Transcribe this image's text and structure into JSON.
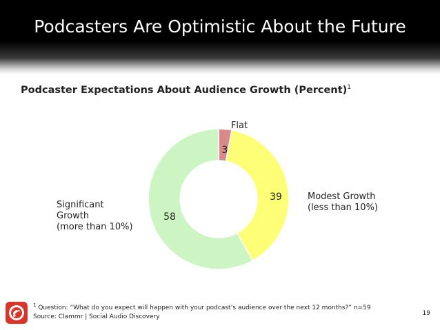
{
  "header": {
    "title": "Podcasters Are Optimistic About the Future"
  },
  "chart_data": {
    "type": "pie",
    "subtitle": "Podcaster Expectations About Audience Growth  (Percent)",
    "subtitle_footnote_ref": "1",
    "donut": true,
    "slices": [
      {
        "name": "Flat",
        "value": 3,
        "color": "#d88a8a",
        "label_lines": [
          "Flat"
        ]
      },
      {
        "name": "Modest Growth",
        "value": 39,
        "color": "#ffff77",
        "label_lines": [
          "Modest Growth",
          "(less than 10%)"
        ]
      },
      {
        "name": "Significant Growth",
        "value": 58,
        "color": "#ccf5c3",
        "label_lines": [
          "Significant",
          "Growth",
          "(more than 10%)"
        ]
      }
    ]
  },
  "footer": {
    "footnote_num": "1",
    "footnote_text": "Question: “What do you expect will happen with your podcast’s audience over the next 12 months?” n=59",
    "source": "Source: Clammr | Social Audio Discovery",
    "page_number": "19",
    "logo_icon": "clammr-logo-icon"
  }
}
